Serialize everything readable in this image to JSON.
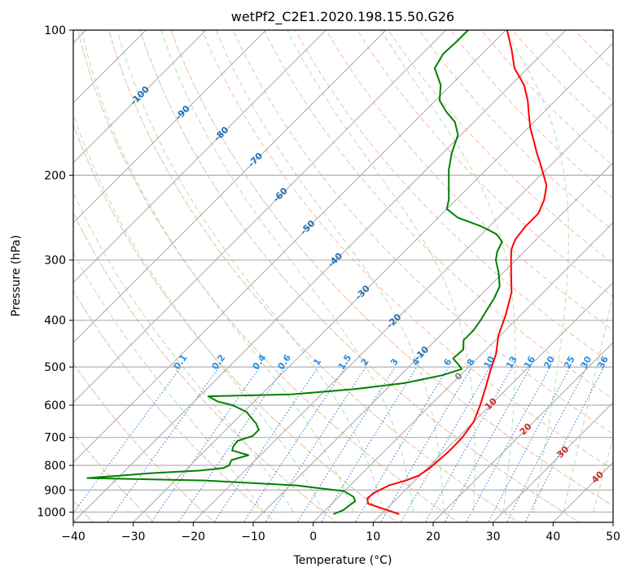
{
  "chart_data": {
    "type": "line",
    "title": "wetPf2_C2E1.2020.198.15.50.G26",
    "xlabel": "Temperature (°C)",
    "ylabel": "Pressure (hPa)",
    "xlim": [
      -40,
      50
    ],
    "ylim": [
      1050,
      100
    ],
    "y_scale": "log",
    "skew": true,
    "grid": true,
    "x_ticks": [
      "−40",
      "−30",
      "−20",
      "−10",
      "0",
      "10",
      "20",
      "30",
      "40",
      "50"
    ],
    "y_ticks": [
      "100",
      "200",
      "300",
      "400",
      "500",
      "600",
      "700",
      "800",
      "900",
      "1000"
    ],
    "isotherm_labels": [
      "-100",
      "-90",
      "-80",
      "-70",
      "-60",
      "-50",
      "-40",
      "-30",
      "-20",
      "-10",
      "0",
      "10",
      "20",
      "30",
      "40"
    ],
    "mixing_ratio_labels": [
      "0.1",
      "0.2",
      "0.4",
      "0.6",
      "1",
      "1.5",
      "2",
      "3",
      "4",
      "6",
      "8",
      "10",
      "13",
      "16",
      "20",
      "25",
      "30",
      "36"
    ],
    "series": [
      {
        "color": "#ff0000",
        "points": [
          [
            1010,
            13
          ],
          [
            985,
            9.5
          ],
          [
            960,
            6
          ],
          [
            935,
            5
          ],
          [
            910,
            5.3
          ],
          [
            880,
            6.5
          ],
          [
            860,
            8.5
          ],
          [
            840,
            9.8
          ],
          [
            815,
            10.3
          ],
          [
            790,
            10.5
          ],
          [
            745,
            10.8
          ],
          [
            700,
            10.7
          ],
          [
            650,
            10
          ],
          [
            600,
            8.3
          ],
          [
            550,
            6.2
          ],
          [
            510,
            4.3
          ],
          [
            470,
            2.4
          ],
          [
            430,
            -0.3
          ],
          [
            390,
            -2.5
          ],
          [
            350,
            -5.3
          ],
          [
            320,
            -8.5
          ],
          [
            298,
            -11
          ],
          [
            285,
            -12.5
          ],
          [
            272,
            -13.5
          ],
          [
            255,
            -14
          ],
          [
            240,
            -14
          ],
          [
            225,
            -15.3
          ],
          [
            210,
            -17.3
          ],
          [
            200,
            -19.5
          ],
          [
            190,
            -21.8
          ],
          [
            180,
            -24.3
          ],
          [
            170,
            -26.8
          ],
          [
            160,
            -29.5
          ],
          [
            150,
            -32
          ],
          [
            140,
            -34.6
          ],
          [
            130,
            -37.8
          ],
          [
            120,
            -42.2
          ],
          [
            110,
            -45.7
          ],
          [
            100,
            -49.8
          ]
        ]
      },
      {
        "color": "#008000",
        "points": [
          [
            1010,
            2
          ],
          [
            990,
            3
          ],
          [
            970,
            3.2
          ],
          [
            950,
            3.5
          ],
          [
            930,
            2.5
          ],
          [
            905,
            0
          ],
          [
            880,
            -9
          ],
          [
            860,
            -25
          ],
          [
            850,
            -45
          ],
          [
            840,
            -40
          ],
          [
            830,
            -35
          ],
          [
            820,
            -27.5
          ],
          [
            810,
            -24
          ],
          [
            800,
            -23.5
          ],
          [
            780,
            -24
          ],
          [
            762,
            -22
          ],
          [
            745,
            -25.5
          ],
          [
            730,
            -26
          ],
          [
            712,
            -26.2
          ],
          [
            695,
            -24.5
          ],
          [
            675,
            -24.5
          ],
          [
            655,
            -26
          ],
          [
            635,
            -28
          ],
          [
            620,
            -29.5
          ],
          [
            600,
            -33
          ],
          [
            590,
            -36
          ],
          [
            575,
            -38.5
          ],
          [
            570,
            -25
          ],
          [
            555,
            -15
          ],
          [
            540,
            -8
          ],
          [
            520,
            -3
          ],
          [
            505,
            -0.8
          ],
          [
            495,
            -2
          ],
          [
            480,
            -4
          ],
          [
            460,
            -3.8
          ],
          [
            440,
            -5.3
          ],
          [
            420,
            -5.3
          ],
          [
            400,
            -5.8
          ],
          [
            380,
            -6.5
          ],
          [
            360,
            -7.2
          ],
          [
            340,
            -8.3
          ],
          [
            318,
            -10.8
          ],
          [
            300,
            -13.3
          ],
          [
            288,
            -14.5
          ],
          [
            275,
            -15.3
          ],
          [
            265,
            -17.5
          ],
          [
            255,
            -21.5
          ],
          [
            245,
            -26.7
          ],
          [
            235,
            -30
          ],
          [
            225,
            -31.2
          ],
          [
            210,
            -33.6
          ],
          [
            195,
            -36.2
          ],
          [
            180,
            -38.5
          ],
          [
            165,
            -40.5
          ],
          [
            155,
            -43.2
          ],
          [
            148,
            -46.2
          ],
          [
            140,
            -49.3
          ],
          [
            130,
            -51.7
          ],
          [
            120,
            -55.5
          ],
          [
            112,
            -56.5
          ],
          [
            106,
            -56.3
          ],
          [
            100,
            -56.3
          ]
        ]
      }
    ]
  }
}
